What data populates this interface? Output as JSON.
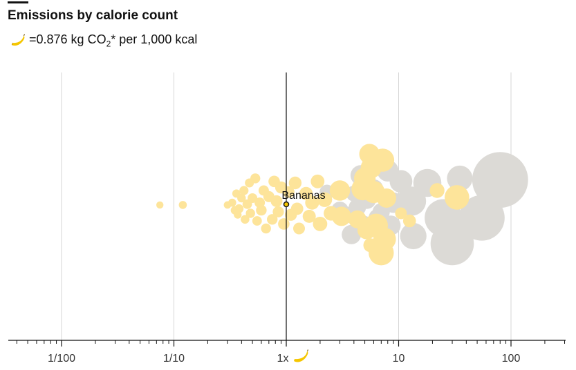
{
  "header": {
    "title": "Emissions by calorie count",
    "subtitle_equals": "=0.876 kg CO",
    "subtitle_sub": "2",
    "subtitle_rest": "* per 1,000 kcal",
    "unit_icon": "banana-icon"
  },
  "colors": {
    "plant": "#fde49a",
    "animal": "#dcdad6",
    "reference_line": "#121212",
    "grid": "#d6d6d6",
    "banana_yellow": "#f5c600"
  },
  "chart_data": {
    "type": "scatter",
    "scale": "log",
    "xlim": [
      0.006,
      300
    ],
    "x_tick_labels": [
      "1/100",
      "1/10",
      "1x",
      "10",
      "100"
    ],
    "x_tick_values": [
      0.01,
      0.1,
      1,
      10,
      100
    ],
    "reference": {
      "label": "Bananas",
      "x": 1
    },
    "series": [
      {
        "category": "plant",
        "points": [
          [
            0.075,
            0.05
          ],
          [
            0.12,
            0.05
          ],
          [
            0.3,
            0.05
          ],
          [
            0.33,
            0.2
          ],
          [
            0.35,
            -0.3
          ],
          [
            0.36,
            0.8
          ],
          [
            0.37,
            -0.6
          ],
          [
            0.38,
            -0.2
          ],
          [
            0.4,
            0.5
          ],
          [
            0.42,
            1.0
          ],
          [
            0.43,
            -0.9
          ],
          [
            0.45,
            0.1
          ],
          [
            0.47,
            1.5
          ],
          [
            0.48,
            -0.5
          ],
          [
            0.5,
            0.5
          ],
          [
            0.53,
            1.8
          ],
          [
            0.55,
            -1.0
          ],
          [
            0.58,
            0.2
          ],
          [
            0.6,
            -0.3
          ],
          [
            0.63,
            1.0
          ],
          [
            0.66,
            -1.5
          ],
          [
            0.7,
            0.6
          ],
          [
            0.75,
            -0.9
          ],
          [
            0.78,
            1.6
          ],
          [
            0.82,
            0.3
          ],
          [
            0.85,
            -0.4
          ],
          [
            0.9,
            1.2
          ],
          [
            0.95,
            -1.2
          ],
          [
            1.05,
            0.9
          ],
          [
            1.1,
            -0.6
          ],
          [
            1.2,
            1.5
          ],
          [
            1.25,
            -0.2
          ],
          [
            1.3,
            -1.5
          ],
          [
            1.5,
            0.8
          ],
          [
            1.6,
            -0.7
          ],
          [
            1.7,
            0.2
          ],
          [
            1.9,
            1.6
          ],
          [
            2.0,
            -1.2
          ],
          [
            2.2,
            0.4
          ],
          [
            2.5,
            -0.5
          ],
          [
            3.0,
            1.0
          ],
          [
            3.1,
            -0.7
          ],
          [
            4.3,
            -0.9
          ],
          [
            4.8,
            1.1
          ],
          [
            5.0,
            1.8
          ],
          [
            5.2,
            -1.6
          ],
          [
            5.5,
            3.4
          ],
          [
            5.6,
            -2.6
          ],
          [
            5.7,
            2.5
          ],
          [
            6.0,
            0.9
          ],
          [
            6.3,
            -1.3
          ],
          [
            7.0,
            -3.1
          ],
          [
            7.2,
            3.0
          ],
          [
            7.5,
            -2.2
          ],
          [
            7.8,
            0.5
          ],
          [
            10.5,
            -0.5
          ],
          [
            12.5,
            -1.0
          ],
          [
            22,
            1.0
          ],
          [
            33,
            0.55
          ]
        ],
        "sizes": [
          0.05,
          0.08,
          0.06,
          0.08,
          0.1,
          0.09,
          0.07,
          0.12,
          0.1,
          0.13,
          0.11,
          0.15,
          0.12,
          0.14,
          0.16,
          0.18,
          0.15,
          0.2,
          0.22,
          0.2,
          0.18,
          0.25,
          0.22,
          0.28,
          0.3,
          0.26,
          0.32,
          0.28,
          0.3,
          0.33,
          0.38,
          0.35,
          0.3,
          0.45,
          0.42,
          0.5,
          0.48,
          0.55,
          0.6,
          0.58,
          1.4,
          1.2,
          1.0,
          1.8,
          1.6,
          1.1,
          1.4,
          0.5,
          1.5,
          1.7,
          2.0,
          2.3,
          1.9,
          1.8,
          1.2,
          0.3,
          0.4,
          0.6,
          2.2
        ]
      },
      {
        "category": "animal",
        "points": [
          [
            2.3,
            0.9
          ],
          [
            3.0,
            -0.3
          ],
          [
            3.5,
            -0.6
          ],
          [
            3.8,
            -1.9
          ],
          [
            4.0,
            0.8
          ],
          [
            4.3,
            -0.1
          ],
          [
            4.6,
            2.0
          ],
          [
            4.9,
            -1.2
          ],
          [
            5.2,
            0.4
          ],
          [
            6.0,
            1.1
          ],
          [
            6.5,
            -0.8
          ],
          [
            7.0,
            -0.4
          ],
          [
            8.0,
            2.3
          ],
          [
            8.5,
            -1.3
          ],
          [
            9.0,
            0.2
          ],
          [
            10.5,
            1.6
          ],
          [
            13.0,
            0.3
          ],
          [
            13.5,
            -2.0
          ],
          [
            18,
            1.5
          ],
          [
            25,
            -0.8
          ],
          [
            30,
            -2.5
          ],
          [
            35,
            1.8
          ],
          [
            55,
            -0.8
          ],
          [
            80,
            1.7
          ]
        ],
        "sizes": [
          0.6,
          0.9,
          0.8,
          1.2,
          0.7,
          0.9,
          1.4,
          0.8,
          1.1,
          1.2,
          1.0,
          0.9,
          1.6,
          1.3,
          1.4,
          1.8,
          3.3,
          2.6,
          3.0,
          5.8,
          8.0,
          2.4,
          9.0,
          14.0
        ]
      }
    ]
  }
}
